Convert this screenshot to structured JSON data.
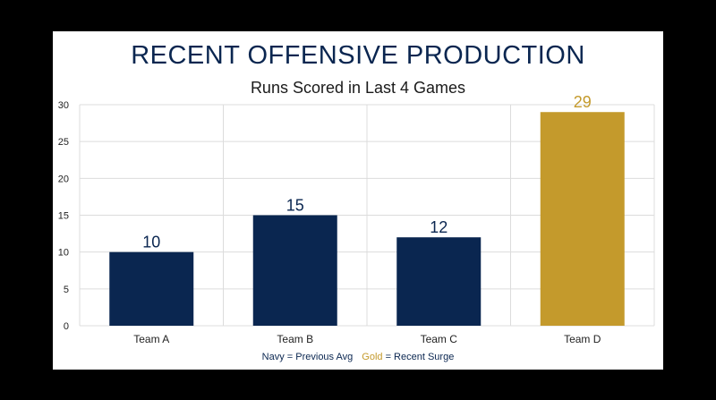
{
  "chart_data": {
    "type": "bar",
    "title": "RECENT OFFENSIVE PRODUCTION",
    "subtitle": "Runs Scored in Last 4 Games",
    "categories": [
      "Team A",
      "Team B",
      "Team C",
      "Team D"
    ],
    "values": [
      10,
      15,
      12,
      29
    ],
    "value_labels": [
      "10",
      "15",
      "12",
      "29"
    ],
    "bar_colors": [
      "#0a2650",
      "#0a2650",
      "#0a2650",
      "#c49a2c"
    ],
    "ylim": [
      0,
      30
    ],
    "yticks": [
      0,
      5,
      10,
      15,
      20,
      25,
      30
    ],
    "grid": true,
    "legend": {
      "navy_word": "Navy",
      "navy_text": " = Previous Avg",
      "gold_word": "Gold",
      "gold_text": " = Recent Surge",
      "navy_color": "#0a2650",
      "gold_color": "#c49a2c"
    }
  }
}
